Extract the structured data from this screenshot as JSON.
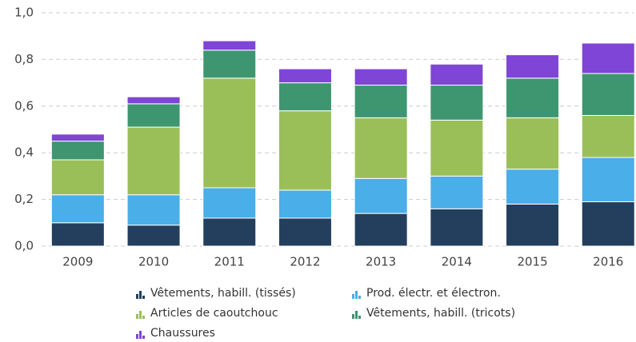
{
  "chart_data": {
    "type": "stacked_bar",
    "categories": [
      "2009",
      "2010",
      "2011",
      "2012",
      "2013",
      "2014",
      "2015",
      "2016"
    ],
    "series": [
      {
        "name": "Vêtements, habill. (tissés)",
        "color": "#243f5e",
        "values": [
          0.1,
          0.09,
          0.12,
          0.12,
          0.14,
          0.16,
          0.18,
          0.19
        ]
      },
      {
        "name": "Prod. électr. et électron.",
        "color": "#4aaee8",
        "values": [
          0.12,
          0.13,
          0.13,
          0.12,
          0.15,
          0.14,
          0.15,
          0.19
        ]
      },
      {
        "name": "Articles de caoutchouc",
        "color": "#9abf59",
        "values": [
          0.15,
          0.29,
          0.47,
          0.34,
          0.26,
          0.24,
          0.22,
          0.18
        ]
      },
      {
        "name": "Vêtements, habill. (tricots)",
        "color": "#3e9670",
        "values": [
          0.08,
          0.1,
          0.12,
          0.12,
          0.14,
          0.15,
          0.17,
          0.18
        ]
      },
      {
        "name": "Chaussures",
        "color": "#7f45d6",
        "values": [
          0.03,
          0.03,
          0.04,
          0.06,
          0.07,
          0.09,
          0.1,
          0.13
        ]
      }
    ],
    "ylim": [
      0,
      1
    ],
    "yticks": [
      {
        "value": 0,
        "label": "0,0"
      },
      {
        "value": 0.2,
        "label": "0,2"
      },
      {
        "value": 0.4,
        "label": "0,4"
      },
      {
        "value": 0.6,
        "label": "0,6"
      },
      {
        "value": 0.8,
        "label": "0,8"
      },
      {
        "value": 1,
        "label": "1,0"
      }
    ],
    "grid": true
  }
}
